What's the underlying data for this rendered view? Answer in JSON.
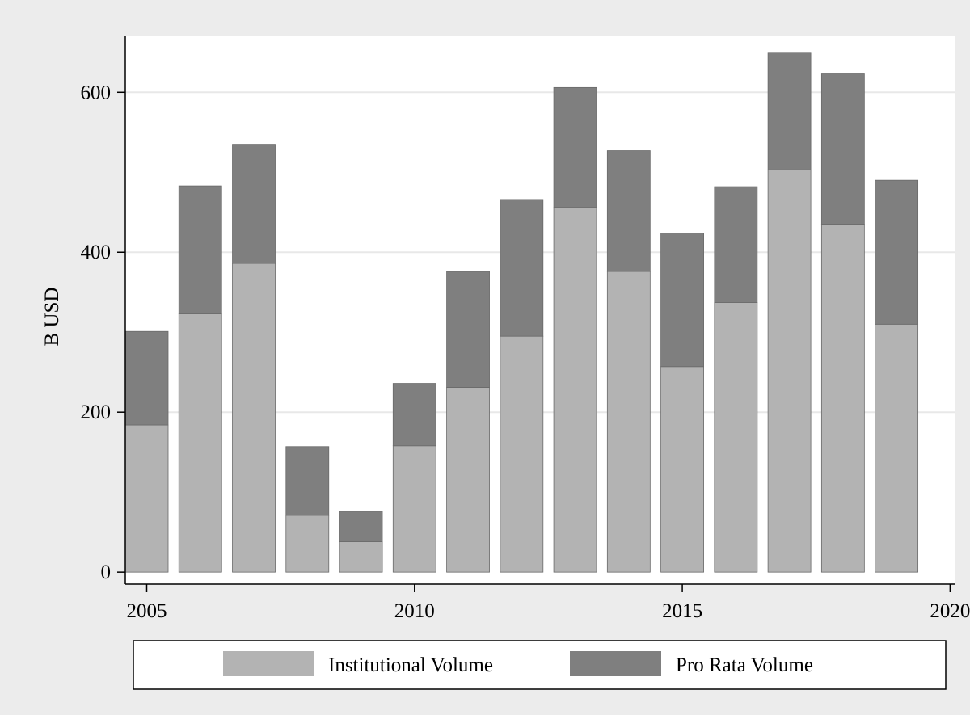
{
  "chart_data": {
    "type": "bar",
    "stacked": true,
    "title": "",
    "xlabel": "",
    "ylabel": "B USD",
    "x": [
      2005,
      2006,
      2007,
      2008,
      2009,
      2010,
      2011,
      2012,
      2013,
      2014,
      2015,
      2016,
      2017,
      2018,
      2019
    ],
    "series": [
      {
        "name": "Institutional Volume",
        "color": "#b3b3b3",
        "values": [
          184,
          323,
          386,
          71,
          38,
          158,
          231,
          295,
          456,
          376,
          257,
          337,
          503,
          435,
          310
        ]
      },
      {
        "name": "Pro Rata Volume",
        "color": "#7f7f7f",
        "values": [
          117,
          160,
          149,
          86,
          38,
          78,
          145,
          171,
          150,
          151,
          167,
          145,
          147,
          189,
          180
        ]
      }
    ],
    "xlim": [
      2004.6,
      2020.1
    ],
    "ylim": [
      -15,
      670
    ],
    "x_ticks": [
      "2005",
      "2010",
      "2015",
      "2020"
    ],
    "y_ticks": [
      "0",
      "200",
      "400",
      "600"
    ],
    "grid": "horizontal",
    "legend": {
      "position": "bottom",
      "entries": [
        "Institutional Volume",
        "Pro Rata Volume"
      ]
    },
    "colors": {
      "background": "#ececec",
      "plot_area": "#ffffff",
      "grid": "#e8e8e8",
      "axis": "#000000"
    }
  }
}
